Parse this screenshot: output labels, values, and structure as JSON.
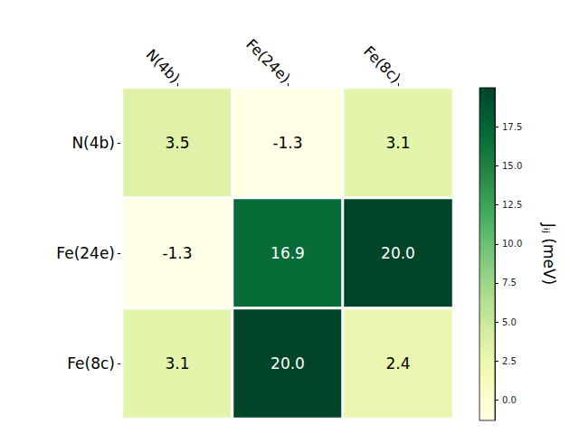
{
  "chart_data": {
    "type": "heatmap",
    "x_categories": [
      "N(4b)",
      "Fe(24e)",
      "Fe(8c)"
    ],
    "y_categories": [
      "N(4b)",
      "Fe(24e)",
      "Fe(8c)"
    ],
    "cells": [
      [
        3.5,
        -1.3,
        3.1
      ],
      [
        -1.3,
        16.9,
        20.0
      ],
      [
        3.1,
        20.0,
        2.4
      ]
    ],
    "value_labels": [
      [
        "3.5",
        "-1.3",
        "3.1"
      ],
      [
        "-1.3",
        "16.9",
        "20.0"
      ],
      [
        "3.1",
        "20.0",
        "2.4"
      ]
    ],
    "data_labels": true,
    "colorbar": {
      "label": "Jᵢⱼ (meV)",
      "range": [
        -1.3,
        20.0
      ],
      "ticks": [
        {
          "value": 0,
          "label": "0.0"
        },
        {
          "value": 2.5,
          "label": "2.5"
        },
        {
          "value": 5,
          "label": "5.0"
        },
        {
          "value": 7.5,
          "label": "7.5"
        },
        {
          "value": 10,
          "label": "10.0"
        },
        {
          "value": 12.5,
          "label": "12.5"
        },
        {
          "value": 15,
          "label": "15.0"
        },
        {
          "value": 17.5,
          "label": "17.5"
        }
      ]
    }
  }
}
